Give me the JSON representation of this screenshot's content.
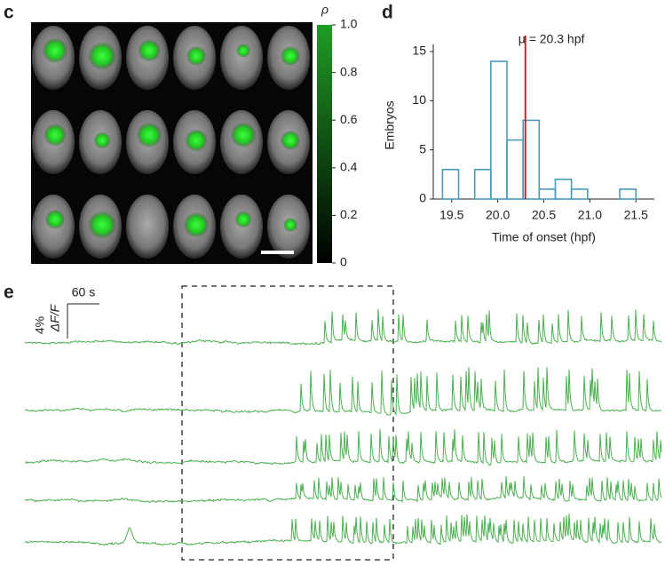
{
  "panel_labels": [
    "c",
    "d",
    "e"
  ],
  "colorbar": {
    "label": "ρ",
    "color": "#1f9d24",
    "ylim": [
      0,
      1
    ],
    "yticks": [
      0,
      0.2,
      0.4,
      0.6,
      0.8,
      {
        "value": 1,
        "label": "1.0"
      }
    ]
  },
  "chart_data": {
    "type": "histogram",
    "bins": [
      19.4,
      19.575,
      19.75,
      19.925,
      20.1,
      20.275,
      20.45,
      20.625,
      20.8,
      20.975,
      21.15,
      21.325,
      21.5
    ],
    "values": [
      3,
      0,
      3,
      14,
      6,
      8,
      1,
      2,
      1,
      0,
      0,
      1
    ],
    "color": "#4a9bb8",
    "xlabel": "Time of onset (hpf)",
    "ylabel": "Embryos",
    "xlim": [
      19.3,
      21.7
    ],
    "ylim": [
      0,
      15
    ],
    "xticks": [
      19.5,
      {
        "value": 20,
        "label": "20.0"
      },
      20.5,
      {
        "value": 21,
        "label": "21.0"
      },
      21.5
    ],
    "yticks": [
      0,
      5,
      10,
      15
    ],
    "annotation": {
      "text": "μ = 20.3 hpf",
      "x": 20.3,
      "color": "#c0282d"
    }
  },
  "traces": {
    "scale_time": "60 s",
    "scale_amplitude": "4%",
    "scale_unit": "ΔF/F",
    "color": "#4caf50"
  }
}
